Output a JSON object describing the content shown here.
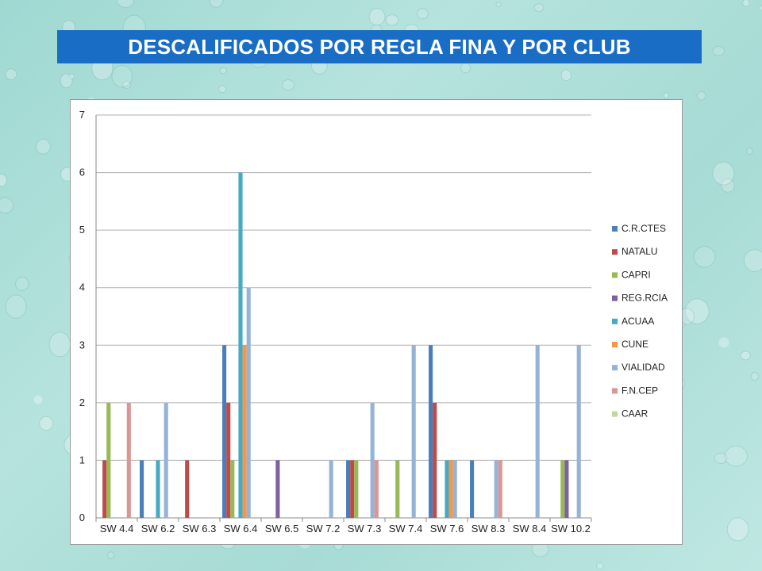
{
  "title": "DESCALIFICADOS POR REGLA FINA Y POR CLUB",
  "chart_data": {
    "type": "bar",
    "title": "",
    "xlabel": "",
    "ylabel": "",
    "ylim": [
      0,
      7
    ],
    "yticks": [
      0,
      1,
      2,
      3,
      4,
      5,
      6,
      7
    ],
    "grid": true,
    "legend_position": "right",
    "categories": [
      "SW 4.4",
      "SW 6.2",
      "SW 6.3",
      "SW 6.4",
      "SW 6.5",
      "SW 7.2",
      "SW 7.3",
      "SW 7.4",
      "SW 7.6",
      "SW 8.3",
      "SW 8.4",
      "SW 10.2"
    ],
    "series": [
      {
        "name": "C.R.CTES",
        "color": "#4a7ebb",
        "values": [
          0,
          1,
          0,
          3,
          0,
          0,
          1,
          0,
          3,
          1,
          0,
          0
        ]
      },
      {
        "name": "NATALU",
        "color": "#be4b48",
        "values": [
          1,
          0,
          1,
          2,
          0,
          0,
          1,
          0,
          2,
          0,
          0,
          0
        ]
      },
      {
        "name": "CAPRI",
        "color": "#98b954",
        "values": [
          2,
          0,
          0,
          1,
          0,
          0,
          1,
          1,
          0,
          0,
          0,
          1
        ]
      },
      {
        "name": "REG.RCIA",
        "color": "#7d60a0",
        "values": [
          0,
          0,
          0,
          0,
          1,
          0,
          0,
          0,
          0,
          0,
          0,
          1
        ]
      },
      {
        "name": "ACUAA",
        "color": "#46aac5",
        "values": [
          0,
          1,
          0,
          6,
          0,
          0,
          0,
          0,
          1,
          0,
          0,
          0
        ]
      },
      {
        "name": "CUNE",
        "color": "#f79646",
        "values": [
          0,
          0,
          0,
          3,
          0,
          0,
          0,
          0,
          1,
          0,
          0,
          0
        ]
      },
      {
        "name": "VIALIDAD",
        "color": "#95b3d7",
        "values": [
          0,
          2,
          0,
          4,
          0,
          1,
          2,
          3,
          1,
          1,
          3,
          3
        ]
      },
      {
        "name": "F.N.CEP",
        "color": "#d99694",
        "values": [
          2,
          0,
          0,
          0,
          0,
          0,
          1,
          0,
          0,
          1,
          0,
          0
        ]
      },
      {
        "name": "CAAR",
        "color": "#c3d69b",
        "values": [
          0,
          0,
          0,
          0,
          0,
          0,
          0,
          0,
          0,
          0,
          0,
          0
        ]
      }
    ]
  }
}
